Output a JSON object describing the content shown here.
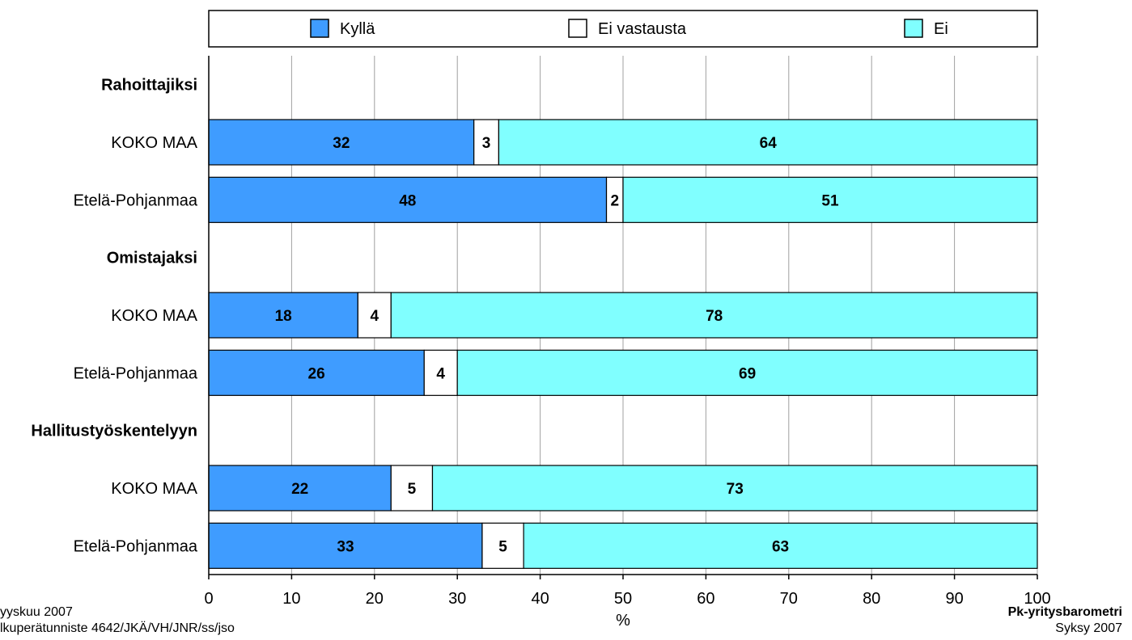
{
  "chart_data": {
    "type": "bar",
    "orientation": "horizontal",
    "stacked": true,
    "xlabel": "%",
    "xlim": [
      0,
      100
    ],
    "xticks": [
      0,
      10,
      20,
      30,
      40,
      50,
      60,
      70,
      80,
      90,
      100
    ],
    "grid": true,
    "legend_position": "top",
    "series_names": [
      "Kyllä",
      "Ei vastausta",
      "Ei"
    ],
    "colors": [
      "#3f9cff",
      "#ffffff",
      "#80ffff"
    ],
    "groups": [
      {
        "label": "Rahoittajiksi",
        "rows": [
          {
            "label": "KOKO MAA",
            "values": [
              32,
              3,
              64
            ]
          },
          {
            "label": "Etelä-Pohjanmaa",
            "values": [
              48,
              2,
              51
            ]
          }
        ]
      },
      {
        "label": "Omistajaksi",
        "rows": [
          {
            "label": "KOKO MAA",
            "values": [
              18,
              4,
              78
            ]
          },
          {
            "label": "Etelä-Pohjanmaa",
            "values": [
              26,
              4,
              69
            ]
          }
        ]
      },
      {
        "label": "Hallitustyöskentelyyn",
        "rows": [
          {
            "label": "KOKO MAA",
            "values": [
              22,
              5,
              73
            ]
          },
          {
            "label": "Etelä-Pohjanmaa",
            "values": [
              33,
              5,
              63
            ]
          }
        ]
      }
    ]
  },
  "footer": {
    "left_line1": "yyskuu 2007",
    "left_line2": "lkuperätunniste 4642/JKÄ/VH/JNR/ss/jso",
    "right_line1": "Pk-yritysbarometri",
    "right_line2": "Syksy 2007"
  }
}
